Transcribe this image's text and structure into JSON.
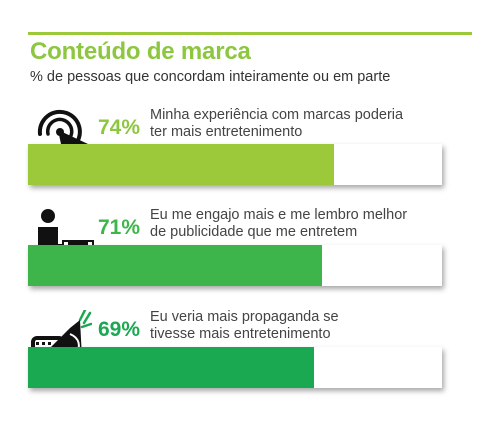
{
  "title": "Conteúdo de marca",
  "subtitle": "% de pessoas que concordam inteiramente ou em parte",
  "colors": {
    "title": "#8dc63f",
    "bar_1": "#9bc93a",
    "bar_2": "#3db54a",
    "bar_3": "#1aa851",
    "pct_1": "#8dc63f",
    "pct_2": "#3db54a",
    "pct_3": "#1aa851"
  },
  "chart_data": {
    "type": "bar",
    "orientation": "horizontal",
    "categories": [
      "Minha experiência com marcas poderia ter mais entretenimento",
      "Eu me engajo mais e me lembro melhor de publicidade que me entretem",
      "Eu veria mais propaganda se tivesse mais entretenimento"
    ],
    "values": [
      74,
      71,
      69
    ],
    "value_labels": [
      "74%",
      "71%",
      "69%"
    ],
    "xlim": [
      0,
      100
    ],
    "title": "Conteúdo de marca",
    "subtitle": "% de pessoas que concordam inteiramente ou em parte",
    "grid": false
  },
  "stats": [
    {
      "pct": "74%",
      "line1": "Minha experiência com marcas poderia",
      "line2": "ter mais entretenimento",
      "icon": "cursor-click-icon"
    },
    {
      "pct": "71%",
      "line1": "Eu me engajo mais e me lembro melhor",
      "line2": "de publicidade que me entretem",
      "icon": "person-video-icon"
    },
    {
      "pct": "69%",
      "line1": "Eu veria mais propaganda se",
      "line2": "tivesse mais entretenimento",
      "icon": "megaphone-icon"
    }
  ]
}
